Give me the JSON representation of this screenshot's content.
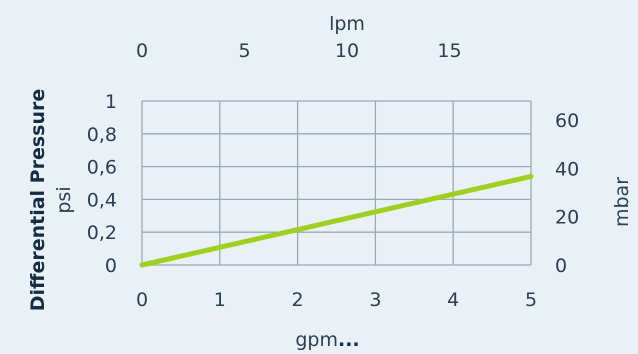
{
  "chart_data": {
    "type": "line",
    "title": "Differential Pressure",
    "xlabel": "gpm",
    "xlabel_suffix": "...",
    "x_top_label": "lpm",
    "ylabel_left": "psi",
    "ylabel_right": "mbar",
    "xlim": [
      0,
      5
    ],
    "ylim": [
      0,
      1
    ],
    "x_ticks": [
      "0",
      "1",
      "2",
      "3",
      "4",
      "5"
    ],
    "x_top_ticks": [
      "0",
      "5",
      "10",
      "15"
    ],
    "x_top_tick_values": [
      0,
      5,
      10,
      15
    ],
    "y_left_ticks": [
      "0",
      "0,2",
      "0,4",
      "0,6",
      "0,8",
      "1"
    ],
    "y_left_tick_values": [
      0,
      0.2,
      0.4,
      0.6,
      0.8,
      1
    ],
    "y_right_ticks": [
      "0",
      "20",
      "40",
      "60"
    ],
    "y_right_tick_values": [
      0,
      20,
      40,
      60
    ],
    "grid": true,
    "series": [
      {
        "x": [
          0,
          5
        ],
        "y": [
          0,
          0.54
        ],
        "color": "#9ed11f"
      }
    ],
    "colors": {
      "background": "#eaf1f6",
      "grid": "#9aa8b5",
      "text": "#2a3f55",
      "line": "#9ed11f"
    }
  }
}
